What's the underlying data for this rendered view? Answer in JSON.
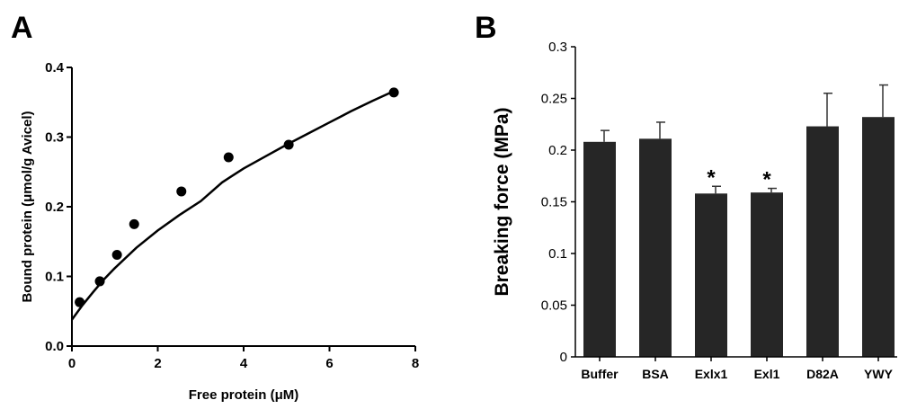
{
  "panels": {
    "a_letter": "A",
    "b_letter": "B"
  },
  "chart_data": [
    {
      "type": "scatter",
      "title": "",
      "xlabel": "Free protein (μM)",
      "ylabel": "Bound protein (μmol/g Avicel)",
      "xlim": [
        0,
        8
      ],
      "ylim": [
        0,
        0.4
      ],
      "xticks": [
        "0",
        "2",
        "4",
        "6",
        "8"
      ],
      "yticks": [
        "0.0",
        "0.1",
        "0.2",
        "0.3",
        "0.4"
      ],
      "points": [
        {
          "x": 0.18,
          "y": 0.063
        },
        {
          "x": 0.65,
          "y": 0.093
        },
        {
          "x": 1.05,
          "y": 0.131
        },
        {
          "x": 1.45,
          "y": 0.175
        },
        {
          "x": 2.55,
          "y": 0.222
        },
        {
          "x": 3.65,
          "y": 0.271
        },
        {
          "x": 5.05,
          "y": 0.289
        },
        {
          "x": 7.5,
          "y": 0.364
        }
      ],
      "fit_curve": {
        "x": [
          0,
          0.25,
          0.5,
          0.75,
          1,
          1.5,
          2,
          2.5,
          3,
          3.5,
          4,
          4.5,
          5,
          5.5,
          6,
          6.5,
          7,
          7.5
        ],
        "y": [
          0.038,
          0.059,
          0.078,
          0.096,
          0.112,
          0.141,
          0.166,
          0.188,
          0.208,
          0.235,
          0.255,
          0.272,
          0.289,
          0.305,
          0.321,
          0.337,
          0.352,
          0.366
        ]
      },
      "grid": false
    },
    {
      "type": "bar",
      "title": "",
      "xlabel": "",
      "ylabel": "Breaking force (MPa)",
      "ylim": [
        0,
        0.3
      ],
      "yticks": [
        "0",
        "0.05",
        "0.1",
        "0.15",
        "0.2",
        "0.25",
        "0.3"
      ],
      "categories": [
        "Buffer",
        "BSA",
        "Exlx1",
        "Exl1",
        "D82A",
        "YWY"
      ],
      "values": [
        0.208,
        0.211,
        0.158,
        0.159,
        0.223,
        0.232
      ],
      "errors": [
        0.011,
        0.016,
        0.007,
        0.004,
        0.032,
        0.031
      ],
      "annotations": [
        "",
        "",
        "*",
        "*",
        "",
        ""
      ],
      "bar_color": "#262626",
      "grid": false
    }
  ]
}
